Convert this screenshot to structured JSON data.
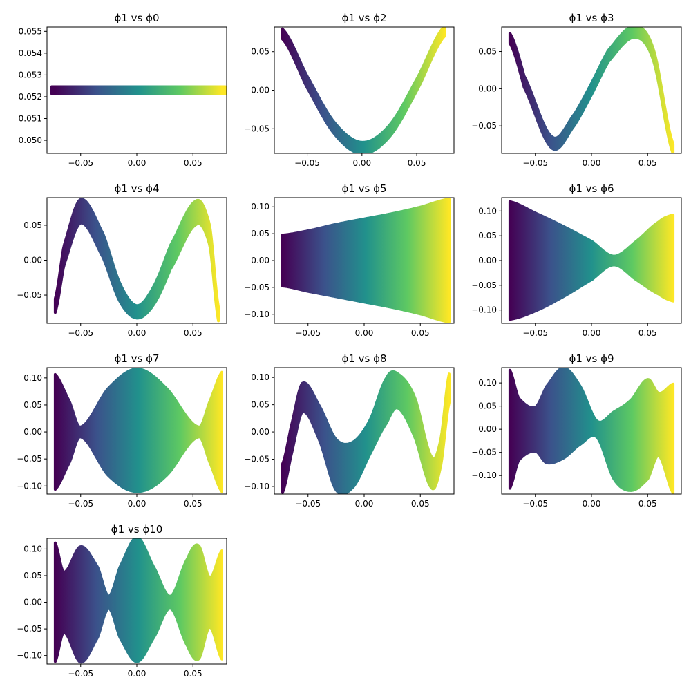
{
  "figure": {
    "background": "#ffffff",
    "colormap": "viridis",
    "colormap_stops": [
      "#440154",
      "#3b528b",
      "#21918c",
      "#5ec962",
      "#fde725"
    ]
  },
  "chart_data": [
    {
      "type": "scatter",
      "title": "ϕ1 vs ϕ0",
      "xlabel": "",
      "ylabel": "",
      "xlim": [
        -0.08,
        0.08
      ],
      "ylim": [
        0.0494,
        0.0552
      ],
      "xticks": [
        -0.05,
        0.0,
        0.05
      ],
      "xtick_labels": [
        "−0.05",
        "0.00",
        "0.05"
      ],
      "yticks": [
        0.05,
        0.051,
        0.052,
        0.053,
        0.054,
        0.055
      ],
      "ytick_labels": [
        "0.050",
        "0.051",
        "0.052",
        "0.053",
        "0.054",
        "0.055"
      ],
      "band": {
        "x": [
          -0.0727,
          0.0
        ],
        "center": [
          0.0523,
          0.0523
        ],
        "half_width": [
          0.0,
          0.0
        ]
      },
      "color_by": "x",
      "grid": false,
      "legend": "none"
    },
    {
      "type": "scatter",
      "title": "ϕ1 vs ϕ2",
      "xlabel": "",
      "ylabel": "",
      "xlim": [
        -0.08,
        0.084
      ],
      "ylim": [
        -0.082,
        0.082
      ],
      "xticks": [
        -0.05,
        0.0,
        0.05
      ],
      "xtick_labels": [
        "−0.05",
        "0.00",
        "0.05"
      ],
      "yticks": [
        -0.05,
        0.0,
        0.05
      ],
      "ytick_labels": [
        "−0.05",
        "0.00",
        "0.05"
      ],
      "band": {
        "x": [
          -0.0727,
          -0.05,
          -0.025,
          0.0,
          0.025,
          0.05,
          0.0757
        ],
        "center": [
          0.073,
          0.0106,
          -0.0496,
          -0.075,
          -0.0531,
          0.0069,
          0.077
        ],
        "half_width": [
          0.002,
          0.003,
          0.003,
          0.003,
          0.003,
          0.003,
          0.002
        ]
      },
      "color_by": "x",
      "grid": false,
      "legend": "none"
    },
    {
      "type": "scatter",
      "title": "ϕ1 vs ϕ3",
      "xlabel": "",
      "ylabel": "",
      "xlim": [
        -0.08,
        0.08
      ],
      "ylim": [
        -0.087,
        0.083
      ],
      "xticks": [
        -0.05,
        0.0,
        0.05
      ],
      "xtick_labels": [
        "−0.05",
        "0.00",
        "0.05"
      ],
      "yticks": [
        -0.05,
        0.0,
        0.05
      ],
      "ytick_labels": [
        "−0.05",
        "0.00",
        "0.05"
      ],
      "band": {
        "x": [
          -0.0727,
          -0.06,
          -0.035,
          -0.015,
          0.0,
          0.015,
          0.038,
          0.055,
          0.0727
        ],
        "center": [
          0.068,
          0.0095,
          -0.0725,
          -0.0414,
          -0.0004,
          0.044,
          0.0765,
          0.046,
          -0.081
        ],
        "half_width": [
          0.002,
          0.003,
          0.003,
          0.003,
          0.003,
          0.003,
          0.003,
          0.003,
          0.002
        ]
      },
      "color_by": "x",
      "grid": false,
      "legend": "none"
    },
    {
      "type": "scatter",
      "title": "ϕ1 vs ϕ4",
      "xlabel": "",
      "ylabel": "",
      "xlim": [
        -0.08,
        0.08
      ],
      "ylim": [
        -0.0905,
        0.0895
      ],
      "xticks": [
        -0.05,
        0.0,
        0.05
      ],
      "xtick_labels": [
        "−0.05",
        "0.00",
        "0.05"
      ],
      "yticks": [
        -0.05,
        0.0,
        0.05
      ],
      "ytick_labels": [
        "−0.05",
        "0.00",
        "0.05"
      ],
      "band": {
        "x": [
          -0.0727,
          -0.065,
          -0.05,
          -0.03,
          -0.015,
          0.0,
          0.015,
          0.03,
          0.053,
          0.065,
          0.0727
        ],
        "center": [
          -0.065,
          0.0063,
          0.07,
          0.0205,
          -0.0464,
          -0.074,
          -0.0507,
          0.0044,
          0.068,
          0.035,
          -0.077
        ],
        "half_width": [
          0.005,
          0.009,
          0.012,
          0.012,
          0.008,
          0.004,
          0.008,
          0.012,
          0.012,
          0.009,
          0.005
        ]
      },
      "color_by": "x",
      "grid": false,
      "legend": "none"
    },
    {
      "type": "scatter",
      "title": "ϕ1 vs ϕ5",
      "xlabel": "",
      "ylabel": "",
      "xlim": [
        -0.08,
        0.08
      ],
      "ylim": [
        -0.117,
        0.117
      ],
      "xticks": [
        -0.05,
        0.0,
        0.05
      ],
      "xtick_labels": [
        "−0.05",
        "0.00",
        "0.05"
      ],
      "yticks": [
        -0.1,
        -0.05,
        0.0,
        0.05,
        0.1
      ],
      "ytick_labels": [
        "−0.10",
        "−0.05",
        "0.00",
        "0.05",
        "0.10"
      ],
      "band": {
        "x": [
          -0.0727,
          -0.05,
          -0.025,
          0.0,
          0.025,
          0.05,
          0.0757
        ],
        "center": [
          0.0,
          -0.001,
          0.0,
          0.0,
          0.0,
          0.0,
          0.0
        ],
        "half_width": [
          0.041,
          0.05,
          0.061,
          0.071,
          0.081,
          0.093,
          0.108
        ]
      },
      "color_by": "x",
      "grid": false,
      "legend": "none"
    },
    {
      "type": "scatter",
      "title": "ϕ1 vs ϕ6",
      "xlabel": "",
      "ylabel": "",
      "xlim": [
        -0.08,
        0.08
      ],
      "ylim": [
        -0.127,
        0.127
      ],
      "xticks": [
        -0.05,
        0.0,
        0.05
      ],
      "xtick_labels": [
        "−0.05",
        "0.00",
        "0.05"
      ],
      "yticks": [
        -0.1,
        -0.05,
        0.0,
        0.05,
        0.1
      ],
      "ytick_labels": [
        "−0.10",
        "−0.05",
        "0.00",
        "0.05",
        "0.10"
      ],
      "band": {
        "x": [
          -0.0727,
          -0.05,
          -0.025,
          0.0,
          0.02,
          0.04,
          0.06,
          0.0727
        ],
        "center": [
          0.0,
          -0.003,
          -0.002,
          0.0,
          0.0,
          0.0,
          0.005,
          0.005
        ],
        "half_width": [
          0.112,
          0.092,
          0.064,
          0.032,
          0.002,
          0.032,
          0.066,
          0.08
        ]
      },
      "color_by": "x",
      "grid": false,
      "legend": "none"
    },
    {
      "type": "scatter",
      "title": "ϕ1 vs ϕ7",
      "xlabel": "",
      "ylabel": "",
      "xlim": [
        -0.08,
        0.08
      ],
      "ylim": [
        -0.115,
        0.119
      ],
      "xticks": [
        -0.05,
        0.0,
        0.05
      ],
      "xtick_labels": [
        "−0.05",
        "0.00",
        "0.05"
      ],
      "yticks": [
        -0.1,
        -0.05,
        0.0,
        0.05,
        0.1
      ],
      "ytick_labels": [
        "−0.10",
        "−0.05",
        "0.00",
        "0.05",
        "0.10"
      ],
      "band": {
        "x": [
          -0.0727,
          -0.06,
          -0.05,
          -0.025,
          0.0,
          0.025,
          0.055,
          0.065,
          0.0757
        ],
        "center": [
          0.0,
          0.0,
          0.0,
          0.0,
          0.003,
          0.0,
          0.0,
          0.0,
          0.0
        ],
        "half_width": [
          0.1,
          0.05,
          0.003,
          0.075,
          0.107,
          0.077,
          0.003,
          0.05,
          0.104
        ]
      },
      "color_by": "x",
      "grid": false,
      "legend": "none"
    },
    {
      "type": "scatter",
      "title": "ϕ1 vs ϕ8",
      "xlabel": "",
      "ylabel": "",
      "xlim": [
        -0.08,
        0.08
      ],
      "ylim": [
        -0.114,
        0.118
      ],
      "xticks": [
        -0.05,
        0.0,
        0.05
      ],
      "xtick_labels": [
        "−0.05",
        "0.00",
        "0.05"
      ],
      "yticks": [
        -0.1,
        -0.05,
        0.0,
        0.05,
        0.1
      ],
      "ytick_labels": [
        "−0.10",
        "−0.05",
        "0.00",
        "0.05",
        "0.10"
      ],
      "band": {
        "x": [
          -0.0727,
          -0.065,
          -0.055,
          -0.04,
          -0.025,
          -0.01,
          0.005,
          0.02,
          0.03,
          0.045,
          0.06,
          0.068,
          0.0757
        ],
        "center": [
          -0.085,
          -0.016,
          0.063,
          0.017,
          -0.06,
          -0.06,
          -0.01,
          0.058,
          0.075,
          0.027,
          -0.074,
          -0.04,
          0.08
        ],
        "half_width": [
          0.02,
          0.02,
          0.02,
          0.025,
          0.04,
          0.035,
          0.025,
          0.035,
          0.025,
          0.03,
          0.022,
          0.018,
          0.02
        ]
      },
      "color_by": "x",
      "grid": false,
      "legend": "none"
    },
    {
      "type": "scatter",
      "title": "ϕ1 vs ϕ9",
      "xlabel": "",
      "ylabel": "",
      "xlim": [
        -0.08,
        0.08
      ],
      "ylim": [
        -0.14,
        0.133
      ],
      "xticks": [
        -0.05,
        0.0,
        0.05
      ],
      "xtick_labels": [
        "−0.05",
        "0.00",
        "0.05"
      ],
      "yticks": [
        -0.1,
        -0.05,
        0.0,
        0.05,
        0.1
      ],
      "ytick_labels": [
        "−0.10",
        "−0.05",
        "0.00",
        "0.05",
        "0.10"
      ],
      "band": {
        "x": [
          -0.0727,
          -0.065,
          -0.05,
          -0.04,
          -0.025,
          -0.01,
          0.005,
          0.02,
          0.035,
          0.05,
          0.06,
          0.0727
        ],
        "center": [
          0.0,
          0.0,
          0.0,
          0.01,
          0.035,
          0.03,
          0.0,
          -0.035,
          -0.035,
          0.0,
          0.01,
          -0.02
        ],
        "half_width": [
          0.12,
          0.06,
          0.04,
          0.075,
          0.09,
          0.055,
          0.01,
          0.065,
          0.09,
          0.1,
          0.06,
          0.11
        ]
      },
      "color_by": "x",
      "grid": false,
      "legend": "none"
    },
    {
      "type": "scatter",
      "title": "ϕ1 vs ϕ10",
      "xlabel": "",
      "ylabel": "",
      "xlim": [
        -0.08,
        0.08
      ],
      "ylim": [
        -0.116,
        0.12
      ],
      "xticks": [
        -0.05,
        0.0,
        0.05
      ],
      "xtick_labels": [
        "−0.05",
        "0.00",
        "0.05"
      ],
      "yticks": [
        -0.1,
        -0.05,
        0.0,
        0.05,
        0.1
      ],
      "ytick_labels": [
        "−0.10",
        "−0.05",
        "0.00",
        "0.05",
        "0.10"
      ],
      "band": {
        "x": [
          -0.0727,
          -0.065,
          -0.05,
          -0.035,
          -0.025,
          -0.015,
          0.0,
          0.015,
          0.03,
          0.045,
          0.055,
          0.065,
          0.0757
        ],
        "center": [
          0.0,
          0.0,
          -0.004,
          0.0,
          0.0,
          0.0,
          0.005,
          0.0,
          0.0,
          0.0,
          0.0,
          0.0,
          -0.005
        ],
        "half_width": [
          0.105,
          0.05,
          0.102,
          0.06,
          0.005,
          0.06,
          0.11,
          0.06,
          0.005,
          0.075,
          0.1,
          0.04,
          0.095
        ]
      },
      "color_by": "x",
      "grid": false,
      "legend": "none"
    }
  ]
}
